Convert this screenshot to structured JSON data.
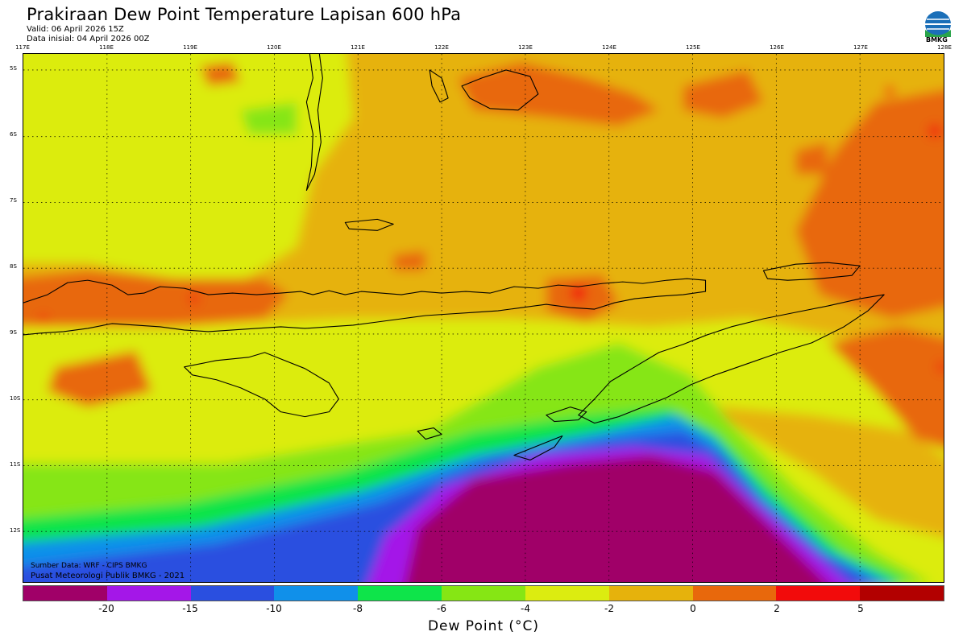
{
  "header": {
    "title": "Prakiraan Dew Point Temperature Lapisan 600 hPa",
    "valid": "Valid: 06 April 2026 15Z",
    "init": "Data inisial: 04 April 2026 00Z",
    "logo_text": "BMKG"
  },
  "axes": {
    "lon_labels": [
      "117E",
      "118E",
      "119E",
      "120E",
      "121E",
      "122E",
      "123E",
      "124E",
      "125E",
      "126E",
      "127E",
      "128E"
    ],
    "lat_labels": [
      "5S",
      "6S",
      "7S",
      "8S",
      "9S",
      "10S",
      "11S",
      "12S"
    ]
  },
  "footer": {
    "source": "Sumber Data: WRF - CIPS BMKG",
    "org": "Pusat Meteorologi Publik BMKG - 2021"
  },
  "colorbar": {
    "title": "Dew Point (°C)",
    "colors": [
      "#a00068",
      "#a417e8",
      "#2a4fe0",
      "#1090ea",
      "#0ee44a",
      "#86e614",
      "#dcec10",
      "#e6b20c",
      "#e8680c",
      "#f20b0b",
      "#b20000"
    ],
    "tick_labels": [
      "-20",
      "-15",
      "-10",
      "-8",
      "-6",
      "-4",
      "-2",
      "0",
      "2",
      "5"
    ]
  }
}
